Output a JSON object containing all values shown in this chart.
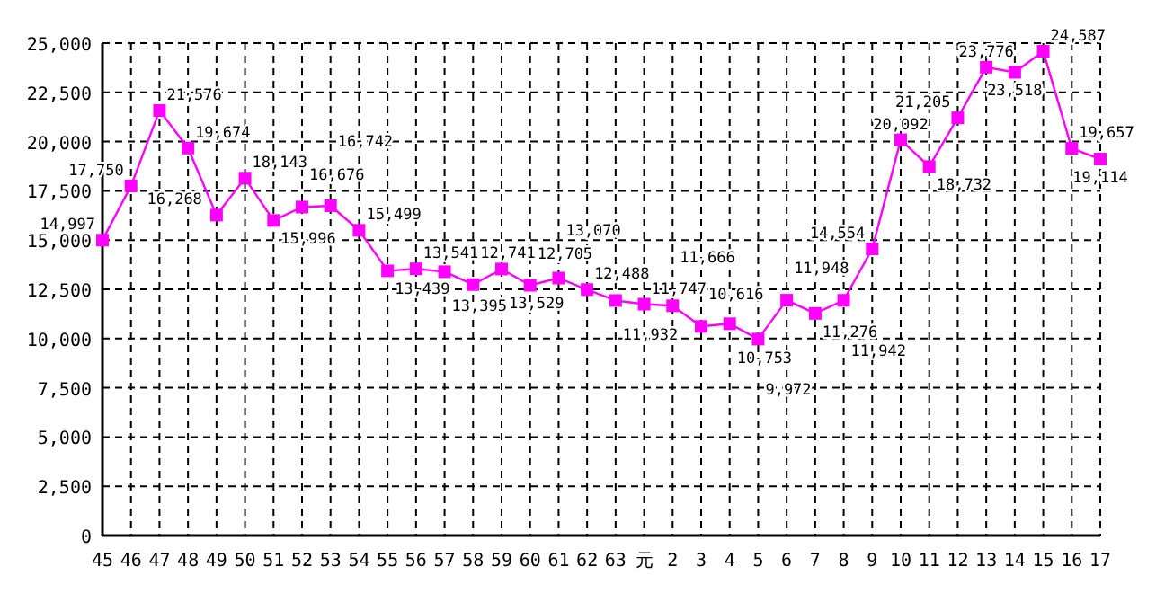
{
  "chart_data": {
    "type": "line",
    "categories": [
      "45",
      "46",
      "47",
      "48",
      "49",
      "50",
      "51",
      "52",
      "53",
      "54",
      "55",
      "56",
      "57",
      "58",
      "59",
      "60",
      "61",
      "62",
      "63",
      "元",
      "2",
      "3",
      "4",
      "5",
      "6",
      "7",
      "8",
      "9",
      "10",
      "11",
      "12",
      "13",
      "14",
      "15",
      "16",
      "17"
    ],
    "series": [
      {
        "color": "#ff00ff",
        "values": [
          14997,
          17750,
          21576,
          19674,
          16268,
          18143,
          15996,
          16676,
          16742,
          15499,
          13439,
          13541,
          13395,
          12741,
          13529,
          12705,
          13070,
          12488,
          11932,
          11747,
          11666,
          10616,
          10753,
          9972,
          11948,
          11276,
          11942,
          14554,
          20092,
          18732,
          21205,
          23776,
          23518,
          24587,
          19657,
          19114
        ],
        "value_labels": [
          "14,997",
          "17,750",
          "21,576",
          "19,674",
          "16,268",
          "18,143",
          "15,996",
          "16,676",
          "16,742",
          "15,499",
          "13,439",
          "13,541",
          "13,395",
          "12,741",
          "13,529",
          "12,705",
          "13,070",
          "12,488",
          "11,932",
          "11,747",
          "11,666",
          "10,616",
          "10,753",
          "9,972",
          "11,948",
          "11,276",
          "11,942",
          "14,554",
          "20,092",
          "18,732",
          "21,205",
          "23,776",
          "23,518",
          "24,587",
          "19,657",
          "19,114"
        ]
      }
    ],
    "ylim": [
      0,
      25000
    ],
    "yticks": [
      {
        "value": 0,
        "label": "0"
      },
      {
        "value": 2500,
        "label": "2,500"
      },
      {
        "value": 5000,
        "label": "5,000"
      },
      {
        "value": 7500,
        "label": "7,500"
      },
      {
        "value": 10000,
        "label": "10,000"
      },
      {
        "value": 12500,
        "label": "12,500"
      },
      {
        "value": 15000,
        "label": "15,000"
      },
      {
        "value": 17500,
        "label": "17,500"
      },
      {
        "value": 20000,
        "label": "20,000"
      },
      {
        "value": 22500,
        "label": "22,500"
      },
      {
        "value": 25000,
        "label": "25,000"
      }
    ],
    "grid": true,
    "marker": "square",
    "line_style": "solid"
  }
}
